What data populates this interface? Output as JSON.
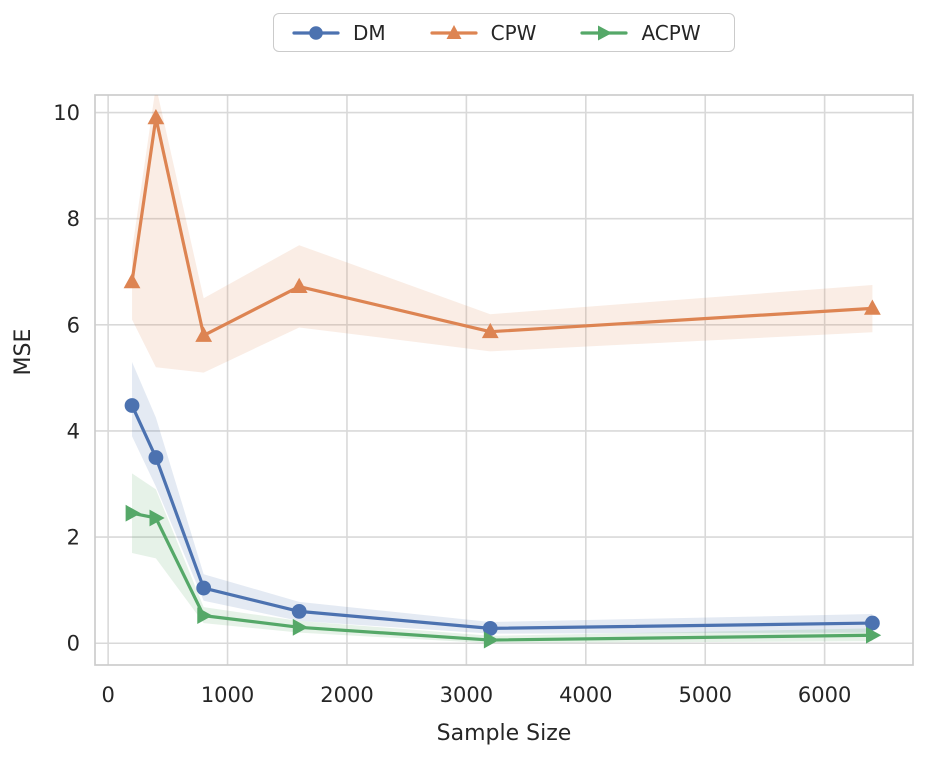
{
  "figure": {
    "xlabel": "Sample Size",
    "ylabel": "MSE"
  },
  "legend": {
    "position": "top-center",
    "items": [
      "DM",
      "CPW",
      "ACPW"
    ]
  },
  "colors": {
    "dm": "#4C72B0",
    "cpw": "#DD8452",
    "acpw": "#55A868",
    "grid": "#D9D9D9",
    "spine": "#CCCCCC",
    "text": "#262626"
  },
  "chart_data": {
    "type": "line",
    "title": "",
    "xlabel": "Sample Size",
    "ylabel": "MSE",
    "x": [
      200,
      400,
      800,
      1600,
      3200,
      6400
    ],
    "series": [
      {
        "name": "DM",
        "color": "#4C72B0",
        "marker": "circle",
        "values": [
          4.48,
          3.5,
          1.04,
          0.6,
          0.28,
          0.38
        ],
        "band_low": [
          3.9,
          2.95,
          0.8,
          0.42,
          0.18,
          0.2
        ],
        "band_high": [
          5.3,
          4.25,
          1.3,
          0.78,
          0.4,
          0.55
        ]
      },
      {
        "name": "CPW",
        "color": "#DD8452",
        "marker": "triangle-up",
        "values": [
          6.81,
          9.9,
          5.8,
          6.72,
          5.87,
          6.31
        ],
        "band_low": [
          6.1,
          5.2,
          5.1,
          5.95,
          5.5,
          5.86
        ],
        "band_high": [
          7.4,
          10.5,
          6.5,
          7.5,
          6.2,
          6.75
        ]
      },
      {
        "name": "ACPW",
        "color": "#55A868",
        "marker": "triangle-right",
        "values": [
          2.45,
          2.36,
          0.52,
          0.3,
          0.06,
          0.15
        ],
        "band_low": [
          1.7,
          1.6,
          0.38,
          0.2,
          0.0,
          0.04
        ],
        "band_high": [
          3.2,
          2.9,
          0.68,
          0.42,
          0.14,
          0.28
        ]
      }
    ],
    "xticks": [
      "0",
      "1000",
      "2000",
      "3000",
      "4000",
      "5000",
      "6000"
    ],
    "xtick_values": [
      0,
      1000,
      2000,
      3000,
      4000,
      5000,
      6000
    ],
    "yticks": [
      "0",
      "2",
      "4",
      "6",
      "8",
      "10"
    ],
    "ytick_values": [
      0,
      2,
      4,
      6,
      8,
      10
    ],
    "xlim": [
      -110,
      6740
    ],
    "ylim": [
      -0.41,
      10.33
    ],
    "grid": true,
    "legend_position": "top-center",
    "band_opacity": 0.15
  }
}
